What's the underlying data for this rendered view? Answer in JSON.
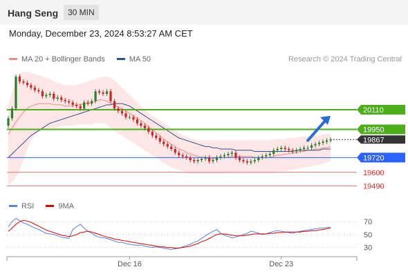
{
  "header": {
    "title": "Hang Seng",
    "timeframe": "30 MIN"
  },
  "datetime": "Monday, December 23, 2024 8:53:27 AM CET",
  "copyright": "Research © 2024 Trading Central",
  "colors": {
    "ma20": "#f28b82",
    "ma50": "#2f4f8f",
    "band": "#fde0e0",
    "up": "#2e7d32",
    "down": "#c62828",
    "resistance": "#4caf1a",
    "support_blue": "#2962ff",
    "support_red": "#e57373",
    "rsi": "#5b7fe0",
    "rsi_ma": "#e00000"
  },
  "legend": [
    {
      "name": "MA 20 + Bollinger Bands",
      "color": "#f28b82"
    },
    {
      "name": "MA 50",
      "color": "#2f4f8f"
    }
  ],
  "rsi_legend": [
    {
      "name": "RSI",
      "color": "#5b7fe0"
    },
    {
      "name": "9MA",
      "color": "#e00000"
    }
  ],
  "chart_data": [
    {
      "type": "candlestick",
      "ylim": [
        19430,
        20470
      ],
      "x_tick_labels": [
        {
          "label": "Dec 16",
          "index": 32
        },
        {
          "label": "Dec 23",
          "index": 72
        }
      ],
      "levels": [
        {
          "value": 20110,
          "label": "20110",
          "style": "green-bold"
        },
        {
          "value": 19950,
          "label": "19950",
          "style": "green-bold"
        },
        {
          "value": 19720,
          "label": "19720",
          "style": "blue"
        },
        {
          "value": 19600,
          "label": "19600",
          "style": "red"
        },
        {
          "value": 19490,
          "label": "19490",
          "style": "red"
        }
      ],
      "current_price": {
        "value": 19867,
        "label": "19867"
      },
      "arrow": {
        "direction": "up",
        "from_index": 79,
        "from_value": 19860,
        "to_index": 85,
        "to_value": 20060
      },
      "close": [
        20040,
        20120,
        20380,
        20340,
        20330,
        20310,
        20290,
        20270,
        20260,
        20220,
        20230,
        20240,
        20200,
        20210,
        20190,
        20180,
        20170,
        20150,
        20140,
        20120,
        20170,
        20160,
        20180,
        20260,
        20250,
        20240,
        20260,
        20180,
        20120,
        20100,
        20080,
        20050,
        20050,
        20030,
        20000,
        19980,
        19960,
        19930,
        19900,
        19880,
        19850,
        19830,
        19810,
        19790,
        19760,
        19740,
        19730,
        19720,
        19700,
        19690,
        19700,
        19710,
        19720,
        19690,
        19700,
        19720,
        19730,
        19740,
        19750,
        19760,
        19720,
        19700,
        19690,
        19680,
        19690,
        19700,
        19720,
        19730,
        19740,
        19750,
        19780,
        19790,
        19800,
        19790,
        19780,
        19770,
        19780,
        19790,
        19800,
        19800,
        19820,
        19830,
        19840,
        19850,
        19860,
        19867
      ],
      "ma20": [
        19910,
        19960,
        20010,
        20050,
        20090,
        20120,
        20140,
        20150,
        20160,
        20160,
        20160,
        20160,
        20150,
        20150,
        20150,
        20140,
        20140,
        20140,
        20150,
        20150,
        20160,
        20160,
        20170,
        20180,
        20190,
        20190,
        20180,
        20160,
        20150,
        20130,
        20120,
        20100,
        20080,
        20060,
        20040,
        20020,
        20000,
        19970,
        19950,
        19920,
        19900,
        19870,
        19850,
        19830,
        19810,
        19790,
        19780,
        19760,
        19750,
        19740,
        19730,
        19720,
        19720,
        19710,
        19710,
        19720,
        19720,
        19720,
        19720,
        19730,
        19730,
        19730,
        19730,
        19730,
        19730,
        19720,
        19720,
        19720,
        19720,
        19720,
        19730,
        19740,
        19740,
        19750,
        19750,
        19760,
        19760,
        19770,
        19770,
        19780,
        19780,
        19790,
        19790,
        19800,
        19800,
        19810
      ],
      "ma50": [
        19720,
        19750,
        19780,
        19810,
        19840,
        19870,
        19900,
        19920,
        19940,
        19960,
        19980,
        20000,
        20010,
        20020,
        20030,
        20040,
        20050,
        20060,
        20070,
        20080,
        20090,
        20100,
        20110,
        20120,
        20130,
        20140,
        20150,
        20150,
        20160,
        20160,
        20160,
        20150,
        20140,
        20120,
        20100,
        20080,
        20060,
        20040,
        20020,
        20000,
        19980,
        19960,
        19940,
        19920,
        19900,
        19880,
        19870,
        19860,
        19850,
        19840,
        19830,
        19820,
        19810,
        19810,
        19800,
        19800,
        19790,
        19790,
        19790,
        19790,
        19780,
        19780,
        19780,
        19780,
        19780,
        19770,
        19770,
        19770,
        19770,
        19770,
        19770,
        19770,
        19770,
        19770,
        19770,
        19770,
        19780,
        19780,
        19780,
        19780,
        19780,
        19780,
        19780,
        19790,
        19790,
        19790
      ],
      "band_upper": [
        20150,
        20250,
        20350,
        20400,
        20420,
        20420,
        20410,
        20400,
        20390,
        20380,
        20370,
        20360,
        20340,
        20330,
        20320,
        20310,
        20310,
        20310,
        20310,
        20320,
        20330,
        20340,
        20350,
        20360,
        20370,
        20380,
        20380,
        20370,
        20350,
        20320,
        20290,
        20260,
        20230,
        20200,
        20170,
        20140,
        20110,
        20080,
        20060,
        20040,
        20020,
        20000,
        19980,
        19960,
        19940,
        19920,
        19900,
        19890,
        19880,
        19870,
        19860,
        19860,
        19860,
        19860,
        19860,
        19860,
        19860,
        19860,
        19860,
        19860,
        19860,
        19860,
        19860,
        19860,
        19860,
        19860,
        19860,
        19860,
        19860,
        19860,
        19870,
        19870,
        19870,
        19870,
        19880,
        19880,
        19880,
        19890,
        19890,
        19890,
        19900,
        19900,
        19900,
        19910,
        19910,
        19910
      ],
      "band_lower": [
        19500,
        19520,
        19560,
        19620,
        19700,
        19790,
        19860,
        19900,
        19930,
        19940,
        19950,
        19960,
        19960,
        19970,
        19980,
        19980,
        19980,
        19980,
        19990,
        19990,
        19990,
        19990,
        19990,
        20000,
        20000,
        20000,
        19990,
        19960,
        19940,
        19920,
        19900,
        19880,
        19860,
        19840,
        19820,
        19800,
        19780,
        19760,
        19740,
        19720,
        19700,
        19680,
        19660,
        19640,
        19630,
        19620,
        19610,
        19600,
        19590,
        19590,
        19590,
        19590,
        19590,
        19590,
        19590,
        19590,
        19590,
        19590,
        19600,
        19600,
        19600,
        19600,
        19600,
        19600,
        19600,
        19600,
        19600,
        19600,
        19600,
        19600,
        19600,
        19610,
        19610,
        19610,
        19620,
        19620,
        19630,
        19630,
        19640,
        19640,
        19650,
        19660,
        19660,
        19670,
        19680,
        19690
      ]
    },
    {
      "type": "line",
      "title": "RSI",
      "ylim": [
        20,
        82
      ],
      "y_tick_labels": [
        "70",
        "50",
        "30"
      ],
      "y_ticks": [
        70,
        50,
        30
      ],
      "series": [
        {
          "name": "RSI",
          "values": [
            62,
            70,
            75,
            72,
            68,
            66,
            63,
            60,
            58,
            55,
            52,
            51,
            50,
            48,
            46,
            45,
            44,
            58,
            62,
            66,
            60,
            55,
            52,
            48,
            46,
            45,
            44,
            42,
            40,
            38,
            38,
            36,
            35,
            34,
            33,
            34,
            32,
            31,
            30,
            31,
            30,
            29,
            28,
            27,
            28,
            29,
            31,
            33,
            35,
            38,
            40,
            44,
            48,
            52,
            55,
            58,
            52,
            49,
            47,
            45,
            46,
            48,
            50,
            52,
            55,
            54,
            52,
            50,
            51,
            53,
            55,
            56,
            55,
            54,
            53,
            52,
            54,
            55,
            56,
            57,
            58,
            59,
            60,
            60,
            61,
            61
          ]
        },
        {
          "name": "9MA",
          "values": [
            55,
            60,
            66,
            70,
            72,
            71,
            69,
            66,
            63,
            60,
            57,
            55,
            53,
            51,
            49,
            48,
            47,
            48,
            50,
            53,
            54,
            55,
            54,
            52,
            50,
            48,
            46,
            45,
            43,
            42,
            41,
            40,
            39,
            38,
            37,
            36,
            35,
            34,
            33,
            32,
            31,
            31,
            30,
            30,
            29,
            29,
            30,
            31,
            32,
            34,
            36,
            39,
            41,
            44,
            47,
            50,
            51,
            51,
            50,
            49,
            48,
            48,
            48,
            49,
            50,
            51,
            51,
            51,
            51,
            52,
            52,
            53,
            53,
            54,
            54,
            54,
            54,
            54,
            55,
            55,
            56,
            56,
            57,
            58,
            59,
            60
          ]
        }
      ]
    }
  ]
}
